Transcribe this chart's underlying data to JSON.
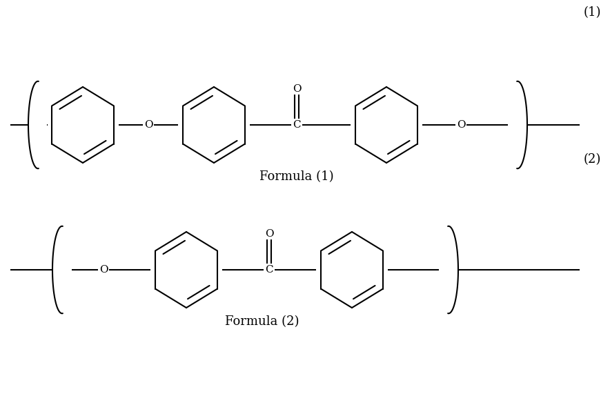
{
  "background_color": "#ffffff",
  "formula1_label": "Formula (1)",
  "formula2_label": "Formula (2)",
  "label1_number": "(1)",
  "label2_number": "(2)",
  "line_color": "#000000",
  "font_size_label": 13,
  "font_size_number": 13,
  "lw": 1.5
}
